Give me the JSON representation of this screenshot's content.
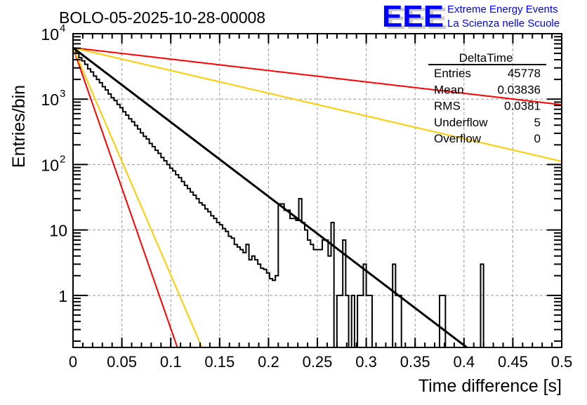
{
  "chart_data": {
    "type": "histogram",
    "title": "BOLO-05-2025-10-28-00008",
    "xlabel": "Time difference [s]",
    "ylabel": "Entries/bin",
    "xlim": [
      0,
      0.5
    ],
    "ylim": [
      0.16,
      10000
    ],
    "yscale": "log",
    "grid": true,
    "x_ticks": [
      "0",
      "0.05",
      "0.1",
      "0.15",
      "0.2",
      "0.25",
      "0.3",
      "0.35",
      "0.4",
      "0.45",
      "0.5"
    ],
    "x_tick_values": [
      0,
      0.05,
      0.1,
      0.15,
      0.2,
      0.25,
      0.3,
      0.35,
      0.4,
      0.45,
      0.5
    ],
    "y_ticks": [
      {
        "value": 10000,
        "base": "10",
        "exp": "4"
      },
      {
        "value": 1000,
        "base": "10",
        "exp": "3"
      },
      {
        "value": 100,
        "base": "10",
        "exp": "2"
      },
      {
        "value": 10,
        "base": "10",
        "exp": ""
      },
      {
        "value": 1,
        "base": "1",
        "exp": ""
      }
    ],
    "histogram": {
      "name": "DeltaTime",
      "bin_width": 0.003,
      "x_start": 0,
      "values": [
        5800,
        5000,
        4300,
        3850,
        3400,
        2900,
        2600,
        2250,
        2000,
        1780,
        1550,
        1380,
        1200,
        1050,
        950,
        830,
        740,
        640,
        570,
        500,
        450,
        395,
        350,
        305,
        270,
        245,
        210,
        188,
        165,
        148,
        128,
        114,
        100,
        88,
        80,
        70,
        63,
        55,
        48,
        43,
        38,
        34,
        30,
        26,
        24,
        21,
        19,
        16.5,
        15,
        13,
        12,
        10.5,
        9.5,
        8,
        7.5,
        6,
        5.5,
        5,
        4.5,
        6,
        3.5,
        4,
        3.5,
        3,
        2.6,
        2.5,
        2.2,
        1.8,
        1.7,
        2,
        0.1,
        0.1,
        0.1,
        0.1,
        0.1,
        0.1,
        0.1,
        0.1,
        0.1,
        0.1,
        0.1,
        0.1,
        0.1,
        0.1,
        0.1,
        0.1,
        0.1,
        0.1,
        0.1,
        0.1,
        0.1,
        0.1,
        0.1,
        0.1,
        0.1,
        0.1,
        0.1,
        0.1,
        0.1,
        0.1,
        0.1,
        0.1,
        0.1,
        0.1,
        0.1,
        0.1,
        0.1,
        0.1,
        0.1,
        0.1,
        0.1,
        0.1,
        0.1,
        0.1,
        0.1,
        0.1,
        0.1,
        0.1,
        0.1,
        0.1,
        0.1,
        0.1,
        0.1,
        0.1,
        0.1,
        0.1,
        0.1,
        0.1,
        0.1,
        0.1,
        0.1,
        0.1,
        0.1,
        0.1,
        0.1,
        0.1,
        0.1,
        0.1,
        0.1,
        0.1,
        0.1,
        0.1,
        0.1,
        0.1,
        0.1,
        0.1,
        0.1,
        0.1,
        0.1,
        0.1,
        0.1,
        0.1,
        0.1,
        0.1,
        0.1,
        0.1,
        0.1,
        0.1,
        0.1,
        0.1,
        0.1,
        0.1,
        0.1,
        0.1,
        0.1,
        0.1
      ],
      "tail_overrides": [
        {
          "x": 0.21,
          "value": 25
        },
        {
          "x": 0.213,
          "value": 25
        },
        {
          "x": 0.216,
          "value": 20
        },
        {
          "x": 0.219,
          "value": 20
        },
        {
          "x": 0.222,
          "value": 15
        },
        {
          "x": 0.225,
          "value": 15
        },
        {
          "x": 0.228,
          "value": 14
        },
        {
          "x": 0.231,
          "value": 30
        },
        {
          "x": 0.234,
          "value": 13
        },
        {
          "x": 0.237,
          "value": 10
        },
        {
          "x": 0.24,
          "value": 7
        },
        {
          "x": 0.243,
          "value": 6
        },
        {
          "x": 0.246,
          "value": 5
        },
        {
          "x": 0.249,
          "value": 5
        },
        {
          "x": 0.252,
          "value": 5
        },
        {
          "x": 0.255,
          "value": 7
        },
        {
          "x": 0.258,
          "value": 7
        },
        {
          "x": 0.261,
          "value": 4
        },
        {
          "x": 0.264,
          "value": 13
        },
        {
          "x": 0.267,
          "value": 0
        },
        {
          "x": 0.27,
          "value": 1
        },
        {
          "x": 0.273,
          "value": 1
        },
        {
          "x": 0.276,
          "value": 7
        },
        {
          "x": 0.279,
          "value": 1
        },
        {
          "x": 0.282,
          "value": 0
        },
        {
          "x": 0.285,
          "value": 1
        },
        {
          "x": 0.288,
          "value": 0
        },
        {
          "x": 0.291,
          "value": 1
        },
        {
          "x": 0.294,
          "value": 1
        },
        {
          "x": 0.297,
          "value": 3
        },
        {
          "x": 0.3,
          "value": 1
        },
        {
          "x": 0.303,
          "value": 1
        },
        {
          "x": 0.306,
          "value": 0
        },
        {
          "x": 0.309,
          "value": 0
        },
        {
          "x": 0.312,
          "value": 0
        },
        {
          "x": 0.315,
          "value": 0
        },
        {
          "x": 0.318,
          "value": 0
        },
        {
          "x": 0.321,
          "value": 0
        },
        {
          "x": 0.324,
          "value": 0
        },
        {
          "x": 0.327,
          "value": 3
        },
        {
          "x": 0.33,
          "value": 1
        },
        {
          "x": 0.333,
          "value": 1
        },
        {
          "x": 0.336,
          "value": 0
        },
        {
          "x": 0.339,
          "value": 0
        },
        {
          "x": 0.342,
          "value": 0
        },
        {
          "x": 0.345,
          "value": 0
        },
        {
          "x": 0.348,
          "value": 0
        },
        {
          "x": 0.351,
          "value": 0
        },
        {
          "x": 0.354,
          "value": 0
        },
        {
          "x": 0.357,
          "value": 0
        },
        {
          "x": 0.36,
          "value": 0
        },
        {
          "x": 0.363,
          "value": 0
        },
        {
          "x": 0.366,
          "value": 0
        },
        {
          "x": 0.369,
          "value": 0
        },
        {
          "x": 0.372,
          "value": 0
        },
        {
          "x": 0.375,
          "value": 1
        },
        {
          "x": 0.378,
          "value": 1
        },
        {
          "x": 0.381,
          "value": 0
        },
        {
          "x": 0.417,
          "value": 3
        }
      ]
    },
    "fits": [
      {
        "name": "fit-main",
        "color": "#000000",
        "form": "A*exp(-x/tau)",
        "A": 6100,
        "tau": 0.0382,
        "x_range": [
          0,
          0.41
        ]
      },
      {
        "name": "red-shallow",
        "color": "#ff0000",
        "form": "A*exp(-x/tau)",
        "A": 6100,
        "tau": 0.2494,
        "x_range": [
          0,
          0.5
        ]
      },
      {
        "name": "orange-shallow",
        "color": "#ffcc00",
        "form": "A*exp(-x/tau)",
        "A": 6100,
        "tau": 0.125,
        "x_range": [
          0,
          0.5
        ]
      },
      {
        "name": "red-steep",
        "color": "#ff0000",
        "form": "A*exp(-x/tau)",
        "A": 6100,
        "tau": 0.01012,
        "x_range": [
          0,
          0.107
        ]
      },
      {
        "name": "orange-steep",
        "color": "#ffcc00",
        "form": "A*exp(-x/tau)",
        "A": 6100,
        "tau": 0.0125,
        "x_range": [
          0,
          0.132
        ]
      }
    ],
    "stats_box": {
      "title": "DeltaTime",
      "rows": [
        {
          "label": "Entries",
          "value": "45778"
        },
        {
          "label": "Mean",
          "value": "0.03836"
        },
        {
          "label": "RMS",
          "value": "0.0381"
        },
        {
          "label": "Underflow",
          "value": "5"
        },
        {
          "label": "Overflow",
          "value": "0"
        }
      ],
      "placement": "top-right"
    }
  },
  "logo": {
    "letters": "EEE",
    "line1": "Extreme Energy Events",
    "line2": "La Scienza nelle Scuole",
    "color": "#0000ff"
  }
}
